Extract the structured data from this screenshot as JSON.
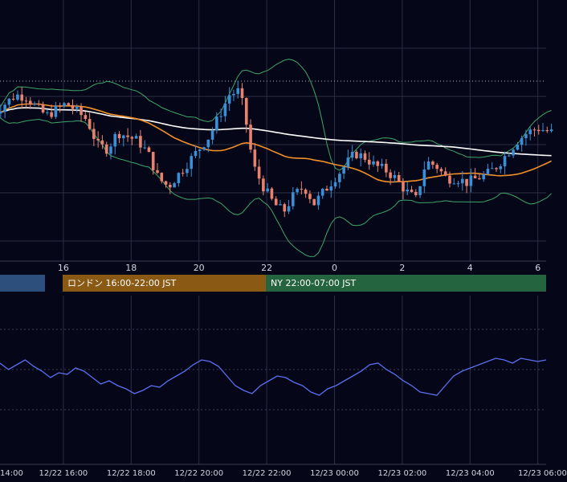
{
  "colors": {
    "background": "#050718",
    "grid": "#2a2f45",
    "candle_up": "#3a8fd6",
    "candle_down": "#e8826f",
    "bollinger": "#3fa56a",
    "ma_long": "#ffffff",
    "ma_short": "#f0902a",
    "oscillator": "#5a6ff0",
    "session_tokyo": "#2c4f7c",
    "session_london": "#8a5a14",
    "session_ny": "#24643e"
  },
  "price_axis": {
    "tick_labels": [
      "",
      "16",
      "18",
      "20",
      "22",
      "0",
      "2",
      "4",
      "6"
    ]
  },
  "sessions": [
    {
      "name": "tokyo",
      "label": ""
    },
    {
      "name": "london",
      "label": "ロンドン 16:00-22:00 JST"
    },
    {
      "name": "ny",
      "label": "NY 22:00-07:00 JST"
    }
  ],
  "time_axis": {
    "tick_labels": [
      "14:00",
      "12/22 16:00",
      "12/22 18:00",
      "12/22 20:00",
      "12/22 22:00",
      "12/23 00:00",
      "12/23 02:00",
      "12/23 04:00",
      "12/23 06:00"
    ]
  },
  "chart_data": [
    {
      "type": "candlestick",
      "title": "",
      "x_hours": [
        14,
        16,
        18,
        20,
        22,
        24,
        26,
        28,
        30
      ],
      "x_tick_labels": [
        "",
        "16",
        "18",
        "20",
        "22",
        "0",
        "2",
        "4",
        "6"
      ],
      "close_path": [
        [
          14.0,
          0.62
        ],
        [
          14.3,
          0.66
        ],
        [
          14.6,
          0.7
        ],
        [
          14.9,
          0.69
        ],
        [
          15.2,
          0.64
        ],
        [
          15.5,
          0.6
        ],
        [
          15.8,
          0.63
        ],
        [
          16.1,
          0.66
        ],
        [
          16.4,
          0.62
        ],
        [
          16.7,
          0.58
        ],
        [
          17.0,
          0.46
        ],
        [
          17.3,
          0.44
        ],
        [
          17.6,
          0.52
        ],
        [
          17.9,
          0.5
        ],
        [
          18.2,
          0.48
        ],
        [
          18.5,
          0.42
        ],
        [
          18.8,
          0.3
        ],
        [
          19.1,
          0.26
        ],
        [
          19.4,
          0.32
        ],
        [
          19.7,
          0.38
        ],
        [
          20.0,
          0.44
        ],
        [
          20.3,
          0.5
        ],
        [
          20.6,
          0.6
        ],
        [
          20.9,
          0.7
        ],
        [
          21.2,
          0.72
        ],
        [
          21.4,
          0.56
        ],
        [
          21.6,
          0.36
        ],
        [
          21.9,
          0.26
        ],
        [
          22.2,
          0.18
        ],
        [
          22.5,
          0.14
        ],
        [
          22.8,
          0.22
        ],
        [
          23.1,
          0.26
        ],
        [
          23.4,
          0.18
        ],
        [
          23.7,
          0.24
        ],
        [
          24.0,
          0.3
        ],
        [
          24.3,
          0.36
        ],
        [
          24.6,
          0.42
        ],
        [
          24.9,
          0.4
        ],
        [
          25.2,
          0.36
        ],
        [
          25.5,
          0.34
        ],
        [
          25.8,
          0.3
        ],
        [
          26.1,
          0.24
        ],
        [
          26.4,
          0.2
        ],
        [
          26.7,
          0.38
        ],
        [
          27.0,
          0.36
        ],
        [
          27.3,
          0.3
        ],
        [
          27.6,
          0.3
        ],
        [
          27.9,
          0.28
        ],
        [
          28.2,
          0.3
        ],
        [
          28.5,
          0.32
        ],
        [
          28.8,
          0.36
        ],
        [
          29.1,
          0.42
        ],
        [
          29.4,
          0.48
        ],
        [
          29.7,
          0.52
        ],
        [
          30.0,
          0.54
        ],
        [
          30.4,
          0.52
        ]
      ],
      "overlays": [
        "bollinger_bands",
        "ma_long",
        "ma_short"
      ],
      "grid": true
    },
    {
      "type": "line",
      "title": "",
      "series": [
        {
          "values": [
            0.68,
            0.6,
            0.66,
            0.72,
            0.64,
            0.58,
            0.5,
            0.56,
            0.54,
            0.62,
            0.58,
            0.5,
            0.42,
            0.46,
            0.4,
            0.36,
            0.3,
            0.34,
            0.4,
            0.38,
            0.46,
            0.52,
            0.58,
            0.66,
            0.72,
            0.7,
            0.64,
            0.52,
            0.4,
            0.34,
            0.3,
            0.4,
            0.46,
            0.52,
            0.5,
            0.44,
            0.4,
            0.32,
            0.28,
            0.36,
            0.4,
            0.46,
            0.52,
            0.58,
            0.66,
            0.68,
            0.6,
            0.54,
            0.46,
            0.4,
            0.32,
            0.3,
            0.28,
            0.4,
            0.52,
            0.58,
            0.62,
            0.66,
            0.7,
            0.74,
            0.72,
            0.68,
            0.74,
            0.72,
            0.7,
            0.72
          ]
        }
      ],
      "ylim": [
        0,
        1
      ],
      "grid": true
    }
  ]
}
